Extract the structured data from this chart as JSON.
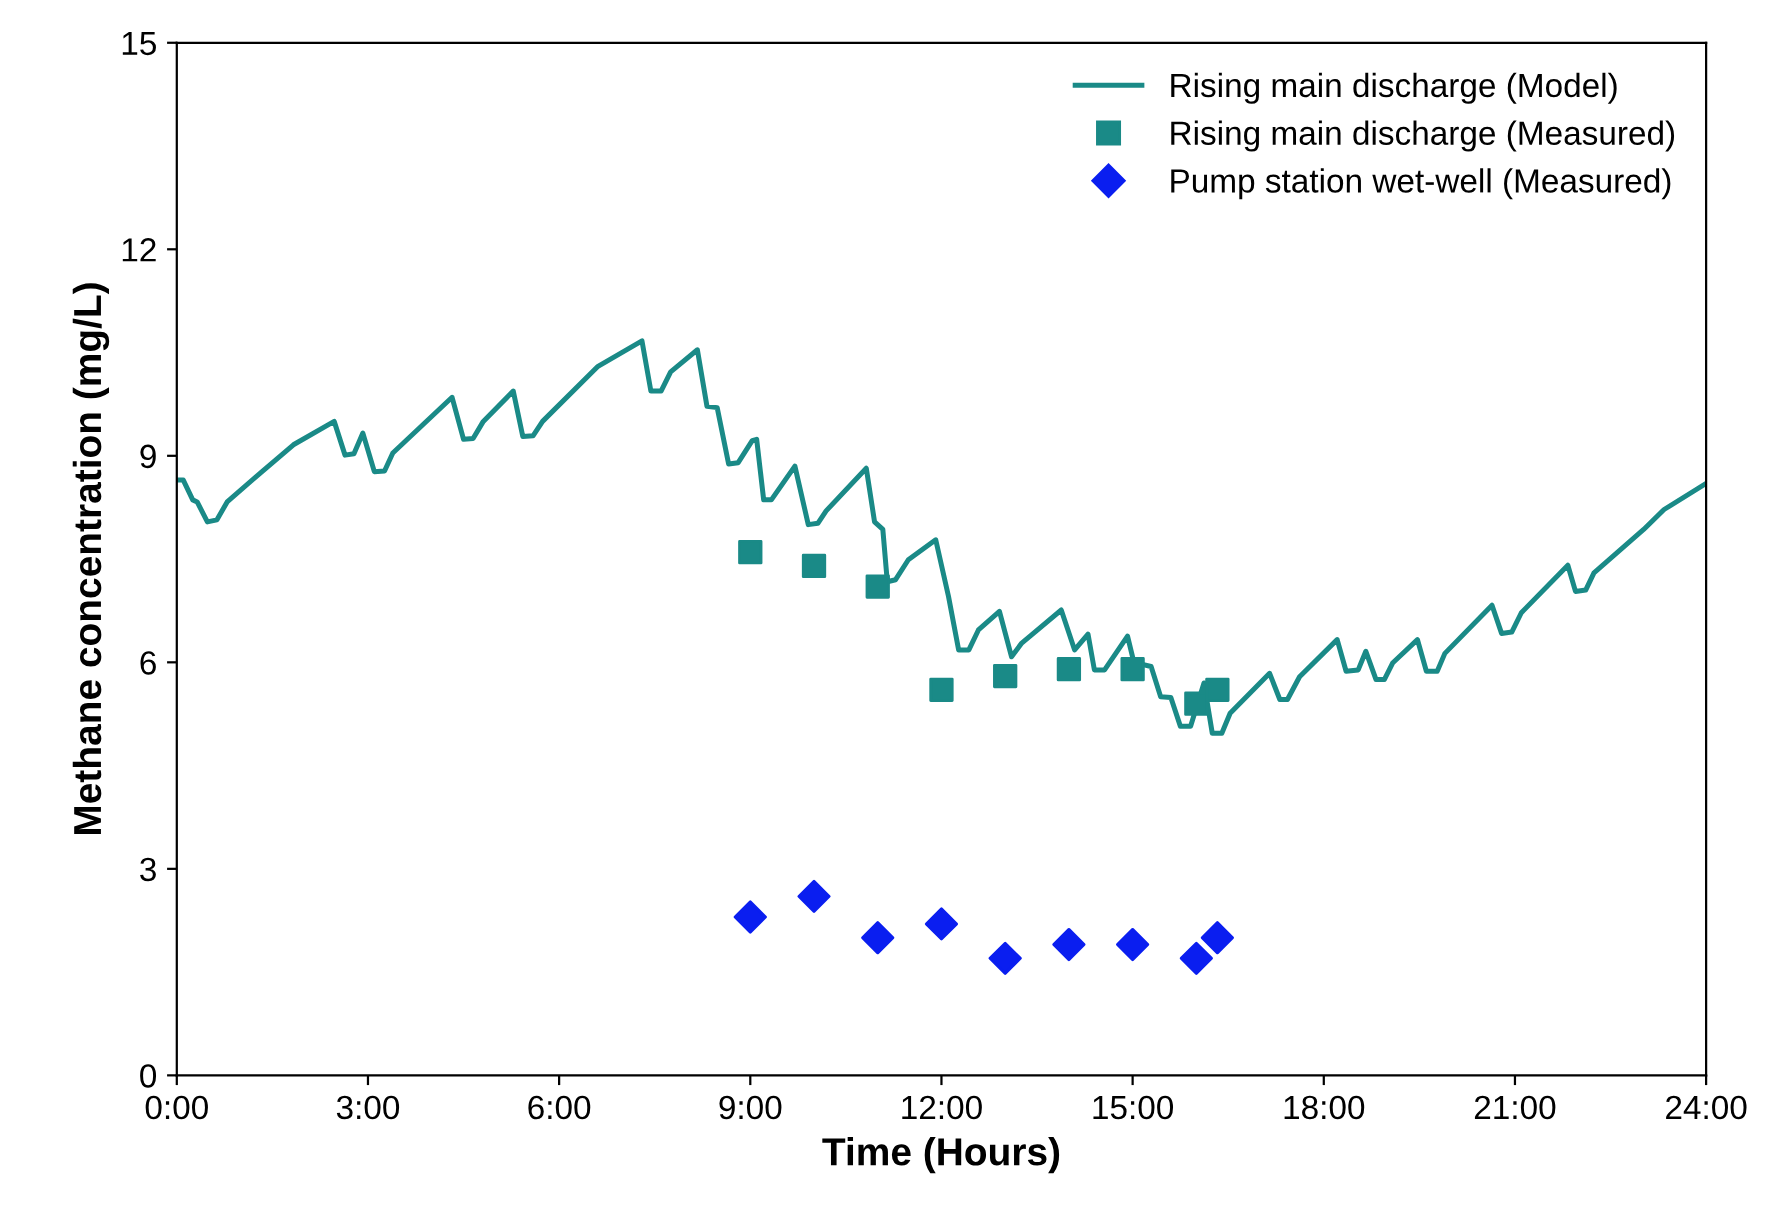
{
  "chart_data": {
    "type": "line",
    "xlabel": "Time (Hours)",
    "ylabel": "Methane concentration (mg/L)",
    "xlim": [
      0,
      24
    ],
    "xticks": [
      {
        "value": 0,
        "label": "0:00"
      },
      {
        "value": 3,
        "label": "3:00"
      },
      {
        "value": 6,
        "label": "6:00"
      },
      {
        "value": 9,
        "label": "9:00"
      },
      {
        "value": 12,
        "label": "12:00"
      },
      {
        "value": 15,
        "label": "15:00"
      },
      {
        "value": 18,
        "label": "18:00"
      },
      {
        "value": 21,
        "label": "21:00"
      },
      {
        "value": 24,
        "label": "24:00"
      }
    ],
    "ylim": [
      0,
      15
    ],
    "yticks": [
      0,
      3,
      6,
      9,
      12,
      15
    ],
    "grid": false,
    "legend": "top right",
    "series": [
      {
        "name": "Rising main discharge (Model)",
        "marker": "none",
        "line_style": "solid",
        "color": "#1a8a87",
        "x": [
          0,
          0.1,
          0.25,
          0.32,
          0.48,
          0.63,
          0.79,
          1.31,
          1.83,
          2.47,
          2.64,
          2.78,
          2.92,
          3.1,
          3.26,
          3.39,
          4.32,
          4.5,
          4.65,
          4.81,
          5.28,
          5.43,
          5.59,
          5.74,
          6.61,
          7.3,
          7.44,
          7.6,
          7.75,
          8.17,
          8.32,
          8.48,
          8.66,
          8.81,
          9.03,
          9.1,
          9.21,
          9.33,
          9.7,
          9.91,
          10.06,
          10.19,
          10.82,
          10.95,
          11.08,
          11.15,
          11.28,
          11.48,
          11.91,
          12.11,
          12.27,
          12.43,
          12.58,
          12.91,
          13.1,
          13.26,
          13.88,
          14.09,
          14.3,
          14.4,
          14.56,
          14.92,
          15.02,
          15.29,
          15.44,
          15.6,
          15.75,
          15.91,
          16.12,
          16.25,
          16.4,
          16.53,
          17.15,
          17.31,
          17.43,
          17.62,
          18.21,
          18.35,
          18.54,
          18.66,
          18.82,
          18.95,
          19.08,
          19.47,
          19.61,
          19.78,
          19.9,
          20.64,
          20.79,
          20.95,
          21.1,
          21.83,
          21.95,
          22.11,
          22.24,
          23.02,
          23.34,
          24
        ],
        "values": [
          8.65,
          8.65,
          8.36,
          8.33,
          8.04,
          8.07,
          8.33,
          8.75,
          9.16,
          9.5,
          9.01,
          9.03,
          9.33,
          8.77,
          8.78,
          9.04,
          9.85,
          9.24,
          9.25,
          9.5,
          9.94,
          9.28,
          9.29,
          9.5,
          10.3,
          10.67,
          9.94,
          9.94,
          10.22,
          10.54,
          9.72,
          9.7,
          8.88,
          8.9,
          9.22,
          9.24,
          8.36,
          8.36,
          8.85,
          8.0,
          8.02,
          8.2,
          8.82,
          8.04,
          7.93,
          7.17,
          7.2,
          7.49,
          7.78,
          6.96,
          6.18,
          6.18,
          6.47,
          6.74,
          6.08,
          6.28,
          6.76,
          6.18,
          6.41,
          5.89,
          5.89,
          6.38,
          6.0,
          5.94,
          5.5,
          5.49,
          5.07,
          5.07,
          5.7,
          4.97,
          4.97,
          5.26,
          5.84,
          5.46,
          5.46,
          5.79,
          6.33,
          5.87,
          5.89,
          6.16,
          5.75,
          5.75,
          5.99,
          6.33,
          5.87,
          5.87,
          6.13,
          6.83,
          6.42,
          6.44,
          6.72,
          7.41,
          7.03,
          7.05,
          7.3,
          7.93,
          8.22,
          8.6
        ]
      },
      {
        "name": "Rising main discharge (Measured)",
        "type": "scatter",
        "marker": "square",
        "color": "#1a8a87",
        "x": [
          9,
          10,
          11,
          12,
          13,
          14,
          15,
          16,
          16.33
        ],
        "values": [
          7.6,
          7.4,
          7.1,
          5.6,
          5.8,
          5.9,
          5.9,
          5.4,
          5.6
        ]
      },
      {
        "name": "Pump station wet-well (Measured)",
        "type": "scatter",
        "marker": "diamond",
        "color": "#0a1ef0",
        "x": [
          9,
          10,
          11,
          12,
          13,
          14,
          15,
          16,
          16.33
        ],
        "values": [
          2.3,
          2.6,
          2.0,
          2.2,
          1.7,
          1.9,
          1.9,
          1.7,
          2.0
        ]
      }
    ]
  }
}
